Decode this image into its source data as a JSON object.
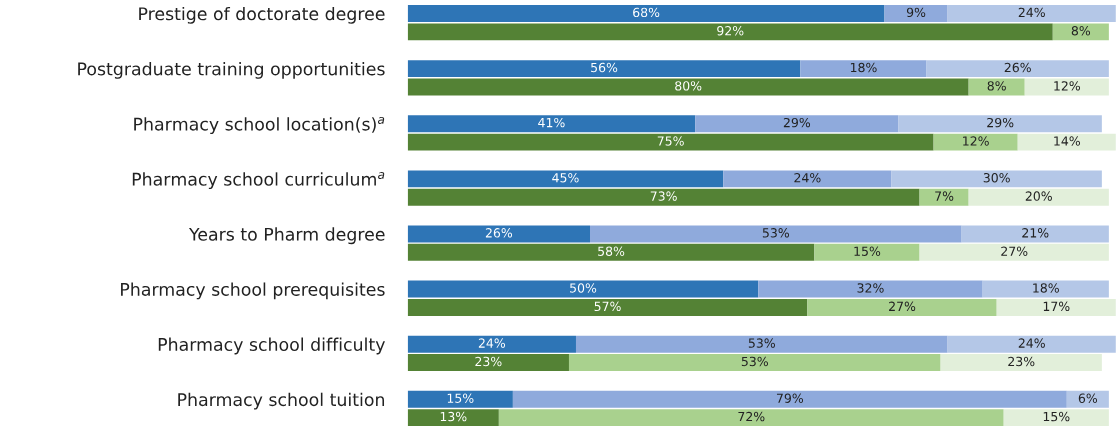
{
  "chart_data": {
    "type": "bar",
    "orientation": "horizontal",
    "stacked": true,
    "legend": false,
    "grid": false,
    "categories": [
      "Prestige of doctorate degree",
      null,
      null,
      "Postgraduate training opportunities",
      null,
      null,
      "Pharmacy school location(s)$^{a}$",
      null,
      null,
      "Pharmacy school curriculum$^{a}$",
      null,
      null,
      "Years to Pharm degree",
      null,
      null,
      "Pharmacy school prerequisites",
      null,
      null,
      "Pharmacy school difficulty",
      null,
      null,
      "Pharmacy school tuition",
      null
    ],
    "series": [
      {
        "colors": [
          "#2e75b6",
          "#548235",
          null,
          "#2e75b6",
          "#548235",
          null,
          "#2e75b6",
          "#548235",
          null,
          "#2e75b6",
          "#548235",
          null,
          "#2e75b6",
          "#548235",
          null,
          "#2e75b6",
          "#548235",
          null,
          "#2e75b6",
          "#548235",
          null,
          "#2e75b6",
          "#548235"
        ],
        "values": [
          68,
          92,
          null,
          56,
          80,
          null,
          41,
          75,
          null,
          45,
          73,
          null,
          26,
          58,
          null,
          50,
          57,
          null,
          24,
          23,
          null,
          15,
          13
        ],
        "value_labels": [
          "68%",
          "92%",
          null,
          "56%",
          "80%",
          null,
          "41%",
          "75%",
          null,
          "45%",
          "73%",
          null,
          "26%",
          "58%",
          null,
          "50%",
          "57%",
          null,
          "24%",
          "23%",
          null,
          "15%",
          "13%"
        ]
      },
      {
        "colors": [
          "#8faadc",
          "#a9d18e",
          null,
          "#8faadc",
          "#a9d18e",
          null,
          "#8faadc",
          "#a9d18e",
          null,
          "#8faadc",
          "#a9d18e",
          null,
          "#8faadc",
          "#a9d18e",
          null,
          "#8faadc",
          "#a9d18e",
          null,
          "#8faadc",
          "#a9d18e",
          null,
          "#8faadc",
          "#a9d18e"
        ],
        "values": [
          9,
          8,
          null,
          18,
          8,
          null,
          29,
          12,
          null,
          24,
          7,
          null,
          53,
          15,
          null,
          32,
          27,
          null,
          53,
          53,
          null,
          79,
          72
        ],
        "value_labels": [
          "9%",
          "8%",
          null,
          "18%",
          "8%",
          null,
          "29%",
          "12%",
          null,
          "24%",
          "7%",
          null,
          "53%",
          "15%",
          null,
          "32%",
          "27%",
          null,
          "53%",
          "53%",
          null,
          "79%",
          "72%"
        ]
      },
      {
        "colors": [
          "#b4c7e7",
          "#e2efda",
          null,
          "#b4c7e7",
          "#e2efda",
          null,
          "#b4c7e7",
          "#e2efda",
          null,
          "#b4c7e7",
          "#e2efda",
          null,
          "#b4c7e7",
          "#e2efda",
          null,
          "#b4c7e7",
          "#e2efda",
          null,
          "#b4c7e7",
          "#e2efda",
          null,
          "#b4c7e7",
          "#e2efda"
        ],
        "values": [
          24,
          null,
          null,
          26,
          12,
          null,
          29,
          14,
          null,
          30,
          20,
          null,
          21,
          27,
          null,
          18,
          17,
          null,
          24,
          23,
          null,
          6,
          15
        ],
        "value_labels": [
          "24%",
          null,
          null,
          "26%",
          "12%",
          null,
          "29%",
          "14%",
          null,
          "30%",
          "20%",
          null,
          "21%",
          "27%",
          null,
          "18%",
          "17%",
          null,
          "24%",
          "23%",
          null,
          "6%",
          "15%"
        ]
      }
    ]
  }
}
